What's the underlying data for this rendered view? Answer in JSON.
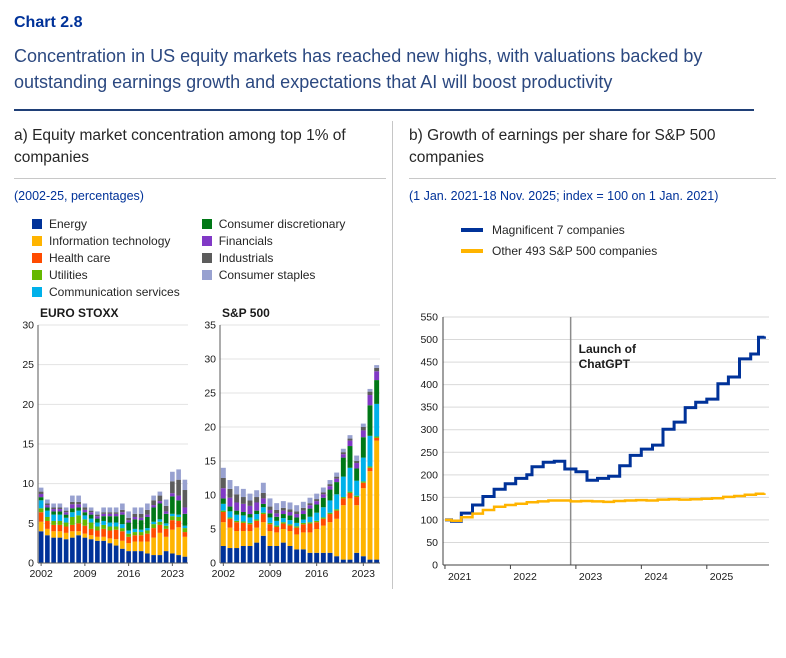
{
  "header": {
    "chart_number": "Chart 2.8",
    "title": "Concentration in US equity markets has reached new highs, with valuations backed by outstanding earnings growth and expectations that AI will boost productivity"
  },
  "panel_a": {
    "title": "a) Equity market concentration among top 1% of companies",
    "subtitle": "(2002-25, percentages)"
  },
  "panel_b": {
    "title": "b) Growth of earnings per share for S&P 500 companies",
    "subtitle": "(1 Jan. 2021-18 Nov. 2025; index = 100 on 1 Jan. 2021)"
  },
  "colors": {
    "accent_blue": "#003299",
    "text_blue": "#2b4880",
    "grid": "#d9d9d9",
    "axis": "#404040"
  },
  "chart_data": [
    {
      "type": "bar",
      "stacked": true,
      "title": "EURO STOXX",
      "ylabel": "",
      "ylim": [
        0,
        30
      ],
      "y_ticks": [
        0,
        5,
        10,
        15,
        20,
        25,
        30
      ],
      "categories": [
        2002,
        2003,
        2004,
        2005,
        2006,
        2007,
        2008,
        2009,
        2010,
        2011,
        2012,
        2013,
        2014,
        2015,
        2016,
        2017,
        2018,
        2019,
        2020,
        2021,
        2022,
        2023,
        2024,
        2025
      ],
      "x_tick_labels": [
        "2002",
        "2009",
        "2016",
        "2023"
      ],
      "series": [
        {
          "name": "Energy",
          "color": "#003299",
          "values": [
            4.0,
            3.5,
            3.2,
            3.2,
            3.0,
            3.2,
            3.5,
            3.2,
            3.0,
            2.8,
            2.8,
            2.5,
            2.2,
            1.8,
            1.5,
            1.5,
            1.5,
            1.2,
            1.0,
            1.0,
            1.5,
            1.2,
            1.0,
            0.8
          ]
        },
        {
          "name": "Information technology",
          "color": "#FFB400",
          "values": [
            1.2,
            0.8,
            0.8,
            0.8,
            0.8,
            0.8,
            0.5,
            0.5,
            0.5,
            0.5,
            0.5,
            0.6,
            0.8,
            1.0,
            1.0,
            1.2,
            1.2,
            1.5,
            2.2,
            2.8,
            1.8,
            3.0,
            3.5,
            2.5
          ]
        },
        {
          "name": "Health care",
          "color": "#FF4B00",
          "values": [
            1.2,
            1.0,
            0.8,
            0.8,
            0.8,
            0.8,
            1.0,
            1.0,
            0.8,
            0.8,
            1.0,
            1.0,
            1.2,
            1.2,
            0.8,
            0.8,
            0.8,
            1.0,
            1.2,
            1.0,
            1.0,
            1.2,
            0.8,
            0.6
          ]
        },
        {
          "name": "Utilities",
          "color": "#65B800",
          "values": [
            0.5,
            0.5,
            0.5,
            0.5,
            0.5,
            1.0,
            1.0,
            0.8,
            0.8,
            0.5,
            0.5,
            0.5,
            0.4,
            0.4,
            0.4,
            0.4,
            0.4,
            0.4,
            0.5,
            0.4,
            0.4,
            0.5,
            0.5,
            0.5
          ]
        },
        {
          "name": "Communication services",
          "color": "#00B1EA",
          "values": [
            1.0,
            0.8,
            0.8,
            0.8,
            0.6,
            0.6,
            0.6,
            0.5,
            0.5,
            0.5,
            0.5,
            0.5,
            0.5,
            0.5,
            0.4,
            0.4,
            0.3,
            0.3,
            0.3,
            0.3,
            0.3,
            0.3,
            0.3,
            0.3
          ]
        },
        {
          "name": "Consumer discretionary",
          "color": "#007816",
          "values": [
            0.4,
            0.4,
            0.4,
            0.4,
            0.4,
            0.5,
            0.4,
            0.4,
            0.5,
            0.5,
            0.6,
            0.8,
            0.8,
            1.2,
            1.0,
            1.2,
            1.2,
            1.4,
            1.8,
            2.0,
            1.2,
            2.2,
            1.8,
            1.5
          ]
        },
        {
          "name": "Financials",
          "color": "#8139C6",
          "values": [
            0.4,
            0.3,
            0.3,
            0.3,
            0.3,
            0.5,
            0.4,
            0.3,
            0.3,
            0.3,
            0.3,
            0.3,
            0.3,
            0.3,
            0.3,
            0.3,
            0.3,
            0.3,
            0.3,
            0.3,
            0.3,
            0.4,
            0.6,
            0.8
          ]
        },
        {
          "name": "Industrials",
          "color": "#5C5C5C",
          "values": [
            0.3,
            0.2,
            0.2,
            0.2,
            0.2,
            0.3,
            0.3,
            0.3,
            0.2,
            0.2,
            0.2,
            0.2,
            0.2,
            0.3,
            0.3,
            0.4,
            0.5,
            0.6,
            0.6,
            0.7,
            0.7,
            1.5,
            2.0,
            2.2
          ]
        },
        {
          "name": "Consumer staples",
          "color": "#98A1D0",
          "values": [
            0.5,
            0.5,
            0.5,
            0.5,
            0.4,
            0.8,
            0.8,
            0.5,
            0.4,
            0.4,
            0.6,
            0.6,
            0.6,
            0.8,
            0.8,
            0.8,
            0.8,
            0.8,
            0.6,
            0.5,
            0.8,
            1.2,
            1.3,
            1.3
          ]
        }
      ]
    },
    {
      "type": "bar",
      "stacked": true,
      "title": "S&P 500",
      "ylabel": "",
      "ylim": [
        0,
        35
      ],
      "y_ticks": [
        0,
        5,
        10,
        15,
        20,
        25,
        30,
        35
      ],
      "categories": [
        2002,
        2003,
        2004,
        2005,
        2006,
        2007,
        2008,
        2009,
        2010,
        2011,
        2012,
        2013,
        2014,
        2015,
        2016,
        2017,
        2018,
        2019,
        2020,
        2021,
        2022,
        2023,
        2024,
        2025
      ],
      "x_tick_labels": [
        "2002",
        "2009",
        "2016",
        "2023"
      ],
      "series": [
        {
          "name": "Energy",
          "color": "#003299",
          "values": [
            2.5,
            2.2,
            2.2,
            2.5,
            2.5,
            3.0,
            4.0,
            2.5,
            2.5,
            3.0,
            2.5,
            2.0,
            2.0,
            1.5,
            1.5,
            1.5,
            1.5,
            1.0,
            0.5,
            0.5,
            1.5,
            1.0,
            0.5,
            0.5
          ]
        },
        {
          "name": "Information technology",
          "color": "#FFB400",
          "values": [
            3.5,
            3.0,
            2.5,
            2.2,
            2.2,
            2.2,
            2.0,
            2.2,
            2.0,
            2.0,
            2.2,
            2.2,
            2.5,
            3.0,
            3.5,
            4.0,
            4.5,
            5.5,
            8.0,
            9.0,
            7.0,
            10.0,
            13.0,
            17.5
          ]
        },
        {
          "name": "Health care",
          "color": "#FF4B00",
          "values": [
            1.5,
            1.3,
            1.3,
            1.2,
            1.0,
            1.0,
            1.2,
            1.0,
            0.8,
            0.8,
            0.8,
            1.0,
            1.2,
            1.3,
            1.0,
            1.0,
            1.2,
            1.2,
            1.0,
            0.8,
            1.2,
            0.8,
            0.5,
            0.4
          ]
        },
        {
          "name": "Utilities",
          "color": "#65B800",
          "values": [
            0.2,
            0.2,
            0.2,
            0.2,
            0.2,
            0.2,
            0.2,
            0.2,
            0.2,
            0.2,
            0.2,
            0.2,
            0.2,
            0.2,
            0.2,
            0.2,
            0.2,
            0.2,
            0.2,
            0.2,
            0.2,
            0.2,
            0.2,
            0.2
          ]
        },
        {
          "name": "Communication services",
          "color": "#00B1EA",
          "values": [
            1.0,
            0.9,
            0.9,
            0.9,
            0.8,
            0.8,
            0.8,
            0.8,
            0.7,
            0.6,
            0.6,
            0.5,
            0.5,
            0.8,
            1.2,
            1.5,
            1.8,
            2.2,
            3.0,
            3.5,
            2.2,
            3.5,
            4.5,
            4.8
          ]
        },
        {
          "name": "Consumer discretionary",
          "color": "#007816",
          "values": [
            0.8,
            0.7,
            0.6,
            0.5,
            0.5,
            0.5,
            0.5,
            0.6,
            0.6,
            0.6,
            0.7,
            0.8,
            0.8,
            1.2,
            1.2,
            1.4,
            1.6,
            1.8,
            2.8,
            3.2,
            1.8,
            3.0,
            4.5,
            3.5
          ]
        },
        {
          "name": "Financials",
          "color": "#8139C6",
          "values": [
            1.5,
            1.3,
            1.2,
            1.2,
            1.2,
            1.2,
            0.8,
            0.5,
            0.5,
            0.5,
            0.5,
            0.5,
            0.5,
            0.5,
            0.5,
            0.5,
            0.5,
            0.5,
            0.5,
            0.8,
            0.8,
            1.0,
            1.5,
            1.3
          ]
        },
        {
          "name": "Industrials",
          "color": "#5C5C5C",
          "values": [
            1.5,
            1.3,
            1.2,
            1.0,
            0.8,
            0.8,
            0.8,
            0.5,
            0.5,
            0.4,
            0.4,
            0.4,
            0.4,
            0.3,
            0.3,
            0.3,
            0.3,
            0.3,
            0.3,
            0.3,
            0.3,
            0.5,
            0.5,
            0.5
          ]
        },
        {
          "name": "Consumer staples",
          "color": "#98A1D0",
          "values": [
            1.5,
            1.3,
            1.2,
            1.2,
            1.0,
            1.0,
            1.5,
            1.2,
            1.0,
            1.0,
            1.0,
            0.9,
            0.9,
            0.8,
            0.8,
            0.7,
            0.6,
            0.6,
            0.5,
            0.5,
            0.8,
            0.5,
            0.4,
            0.4
          ]
        }
      ]
    },
    {
      "type": "line",
      "step": true,
      "title": "",
      "xlim": [
        2020.97,
        2025.95
      ],
      "ylim": [
        0,
        550
      ],
      "y_ticks": [
        0,
        50,
        100,
        150,
        200,
        250,
        300,
        350,
        400,
        450,
        500,
        550
      ],
      "x_ticks": [
        2021,
        2022,
        2023,
        2024,
        2025
      ],
      "vline": {
        "x": 2022.92,
        "color": "#8c8c8c"
      },
      "annotation": {
        "lines": [
          "Launch of",
          "ChatGPT"
        ],
        "x": 2022.92,
        "y": 470
      },
      "series": [
        {
          "name": "Magnificent 7 companies",
          "color": "#003299",
          "width": 3,
          "points": [
            [
              2021.0,
              100
            ],
            [
              2021.1,
              97
            ],
            [
              2021.25,
              115
            ],
            [
              2021.42,
              133
            ],
            [
              2021.58,
              152
            ],
            [
              2021.75,
              168
            ],
            [
              2021.92,
              180
            ],
            [
              2022.08,
              192
            ],
            [
              2022.25,
              200
            ],
            [
              2022.33,
              218
            ],
            [
              2022.5,
              228
            ],
            [
              2022.67,
              230
            ],
            [
              2022.83,
              213
            ],
            [
              2023.0,
              207
            ],
            [
              2023.17,
              188
            ],
            [
              2023.33,
              192
            ],
            [
              2023.5,
              197
            ],
            [
              2023.67,
              220
            ],
            [
              2023.83,
              243
            ],
            [
              2024.0,
              257
            ],
            [
              2024.17,
              266
            ],
            [
              2024.33,
              301
            ],
            [
              2024.5,
              317
            ],
            [
              2024.67,
              349
            ],
            [
              2024.83,
              361
            ],
            [
              2025.0,
              368
            ],
            [
              2025.17,
              402
            ],
            [
              2025.33,
              417
            ],
            [
              2025.5,
              457
            ],
            [
              2025.67,
              468
            ],
            [
              2025.79,
              505
            ],
            [
              2025.88,
              507
            ]
          ]
        },
        {
          "name": "Other 493 S&P 500 companies",
          "color": "#FFB400",
          "width": 2.5,
          "points": [
            [
              2021.0,
              100
            ],
            [
              2021.1,
              98
            ],
            [
              2021.25,
              106
            ],
            [
              2021.42,
              114
            ],
            [
              2021.58,
              122
            ],
            [
              2021.75,
              129
            ],
            [
              2021.92,
              133
            ],
            [
              2022.08,
              136
            ],
            [
              2022.25,
              139
            ],
            [
              2022.42,
              141
            ],
            [
              2022.58,
              143
            ],
            [
              2022.75,
              143
            ],
            [
              2022.92,
              141
            ],
            [
              2023.08,
              142
            ],
            [
              2023.25,
              141
            ],
            [
              2023.42,
              140
            ],
            [
              2023.58,
              142
            ],
            [
              2023.75,
              143
            ],
            [
              2023.92,
              144
            ],
            [
              2024.08,
              143
            ],
            [
              2024.25,
              145
            ],
            [
              2024.42,
              146
            ],
            [
              2024.58,
              145
            ],
            [
              2024.75,
              146
            ],
            [
              2024.92,
              147
            ],
            [
              2025.08,
              148
            ],
            [
              2025.25,
              151
            ],
            [
              2025.42,
              153
            ],
            [
              2025.58,
              156
            ],
            [
              2025.75,
              158
            ],
            [
              2025.88,
              159
            ]
          ]
        }
      ]
    }
  ]
}
